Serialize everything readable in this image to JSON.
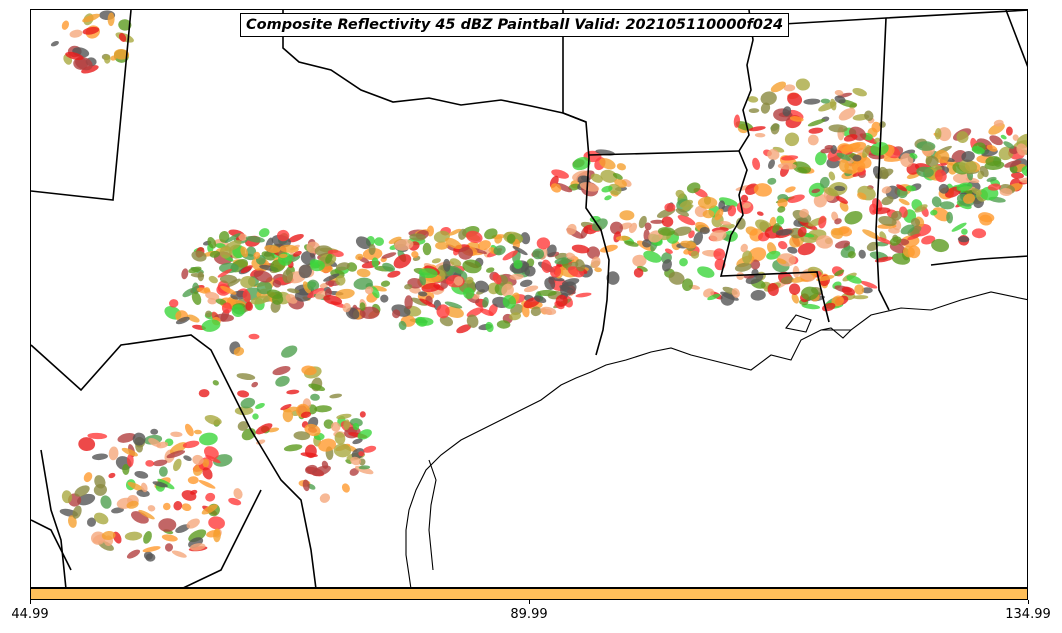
{
  "title": "Composite Reflectivity 45 dBZ Paintball Valid: 202105110000f024",
  "colorbar": {
    "color": "#ffbf5a",
    "ticks": [
      "44.99",
      "89.99",
      "134.99"
    ]
  },
  "colors": {
    "paintball": [
      "#ff3b3b",
      "#e81b1b",
      "#ff9a2e",
      "#f5a030",
      "#b34040",
      "#4fa04f",
      "#3cd63c",
      "#5d9b1f",
      "#a9a940",
      "#555555",
      "#8a8a40",
      "#f5a87c"
    ],
    "boundaries": "#000000"
  }
}
